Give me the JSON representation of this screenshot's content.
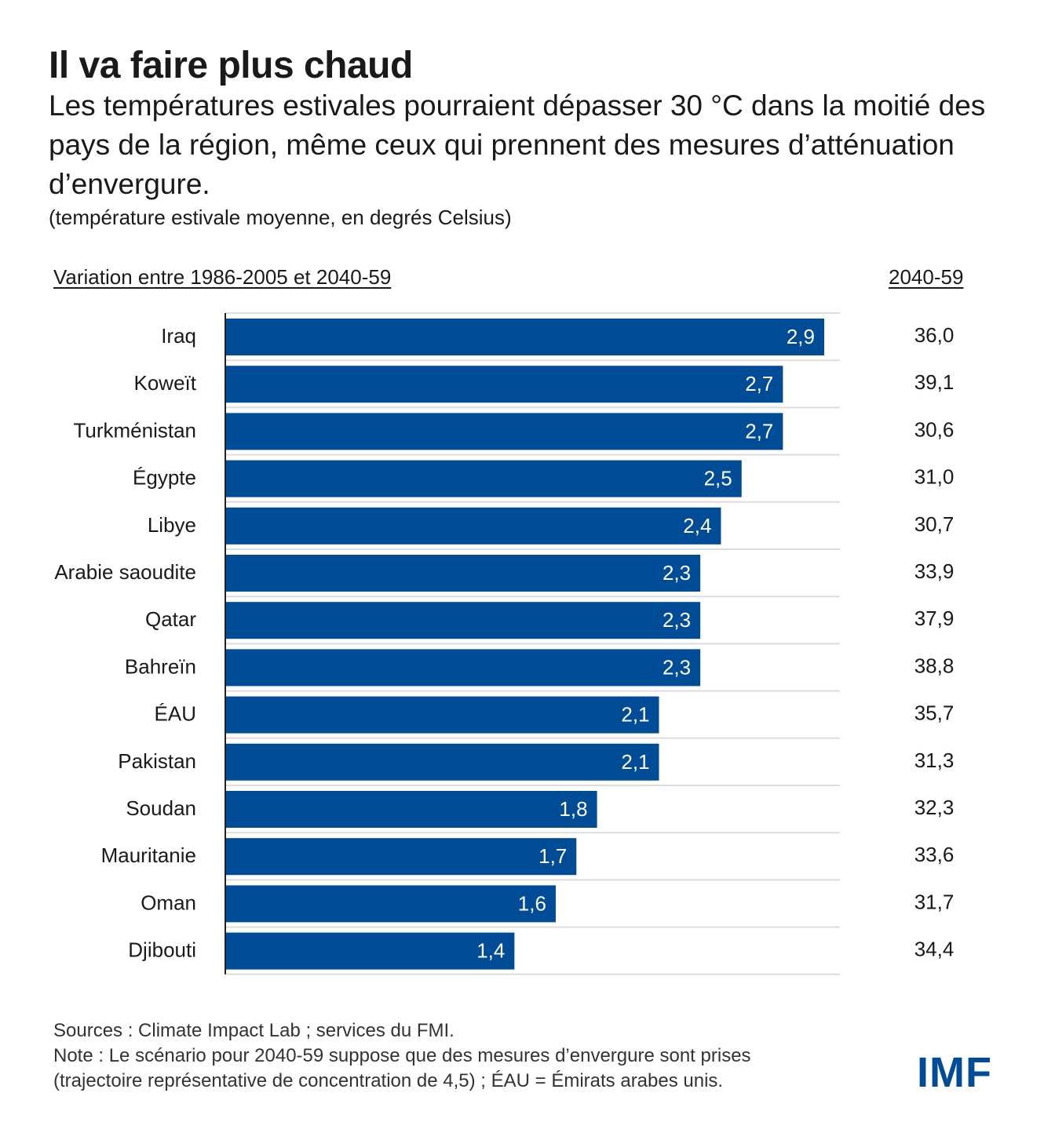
{
  "title": "Il va faire plus chaud",
  "subtitle": "Les températures estivales pourraient dépasser 30 °C dans la moitié des pays de la région, même ceux qui prennent des mesures d’atténuation d’envergure.",
  "unit_note": "(température estivale moyenne, en degrés Celsius)",
  "colors": {
    "bar": "#004C97",
    "label": "#ffffff",
    "grid": "#dddddd"
  },
  "chart_data": {
    "type": "bar",
    "orientation": "horizontal",
    "left_header": "Variation entre 1986-2005 et 2040-59",
    "right_header": "2040-59",
    "categories": [
      "Iraq",
      "Koweït",
      "Turkménistan",
      "Égypte",
      "Libye",
      "Arabie saoudite",
      "Qatar",
      "Bahreïn",
      "ÉAU",
      "Pakistan",
      "Soudan",
      "Mauritanie",
      "Oman",
      "Djibouti"
    ],
    "values": [
      2.9,
      2.7,
      2.7,
      2.5,
      2.4,
      2.3,
      2.3,
      2.3,
      2.1,
      2.1,
      1.8,
      1.7,
      1.6,
      1.4
    ],
    "value_labels": [
      "2,9",
      "2,7",
      "2,7",
      "2,5",
      "2,4",
      "2,3",
      "2,3",
      "2,3",
      "2,1",
      "2,1",
      "1,8",
      "1,7",
      "1,6",
      "1,4"
    ],
    "right_values": [
      "36,0",
      "39,1",
      "30,6",
      "31,0",
      "30,7",
      "33,9",
      "37,9",
      "38,8",
      "35,7",
      "31,3",
      "32,3",
      "33,6",
      "31,7",
      "34,4"
    ],
    "xlim": [
      0,
      2.98
    ]
  },
  "footer": {
    "sources": "Sources : Climate Impact Lab ; services du FMI.",
    "note1": "Note : Le scénario pour 2040-59 suppose que des mesures d’envergure sont prises",
    "note2": "(trajectoire représentative de concentration de 4,5) ; ÉAU = Émirats arabes unis."
  },
  "logo": "IMF"
}
